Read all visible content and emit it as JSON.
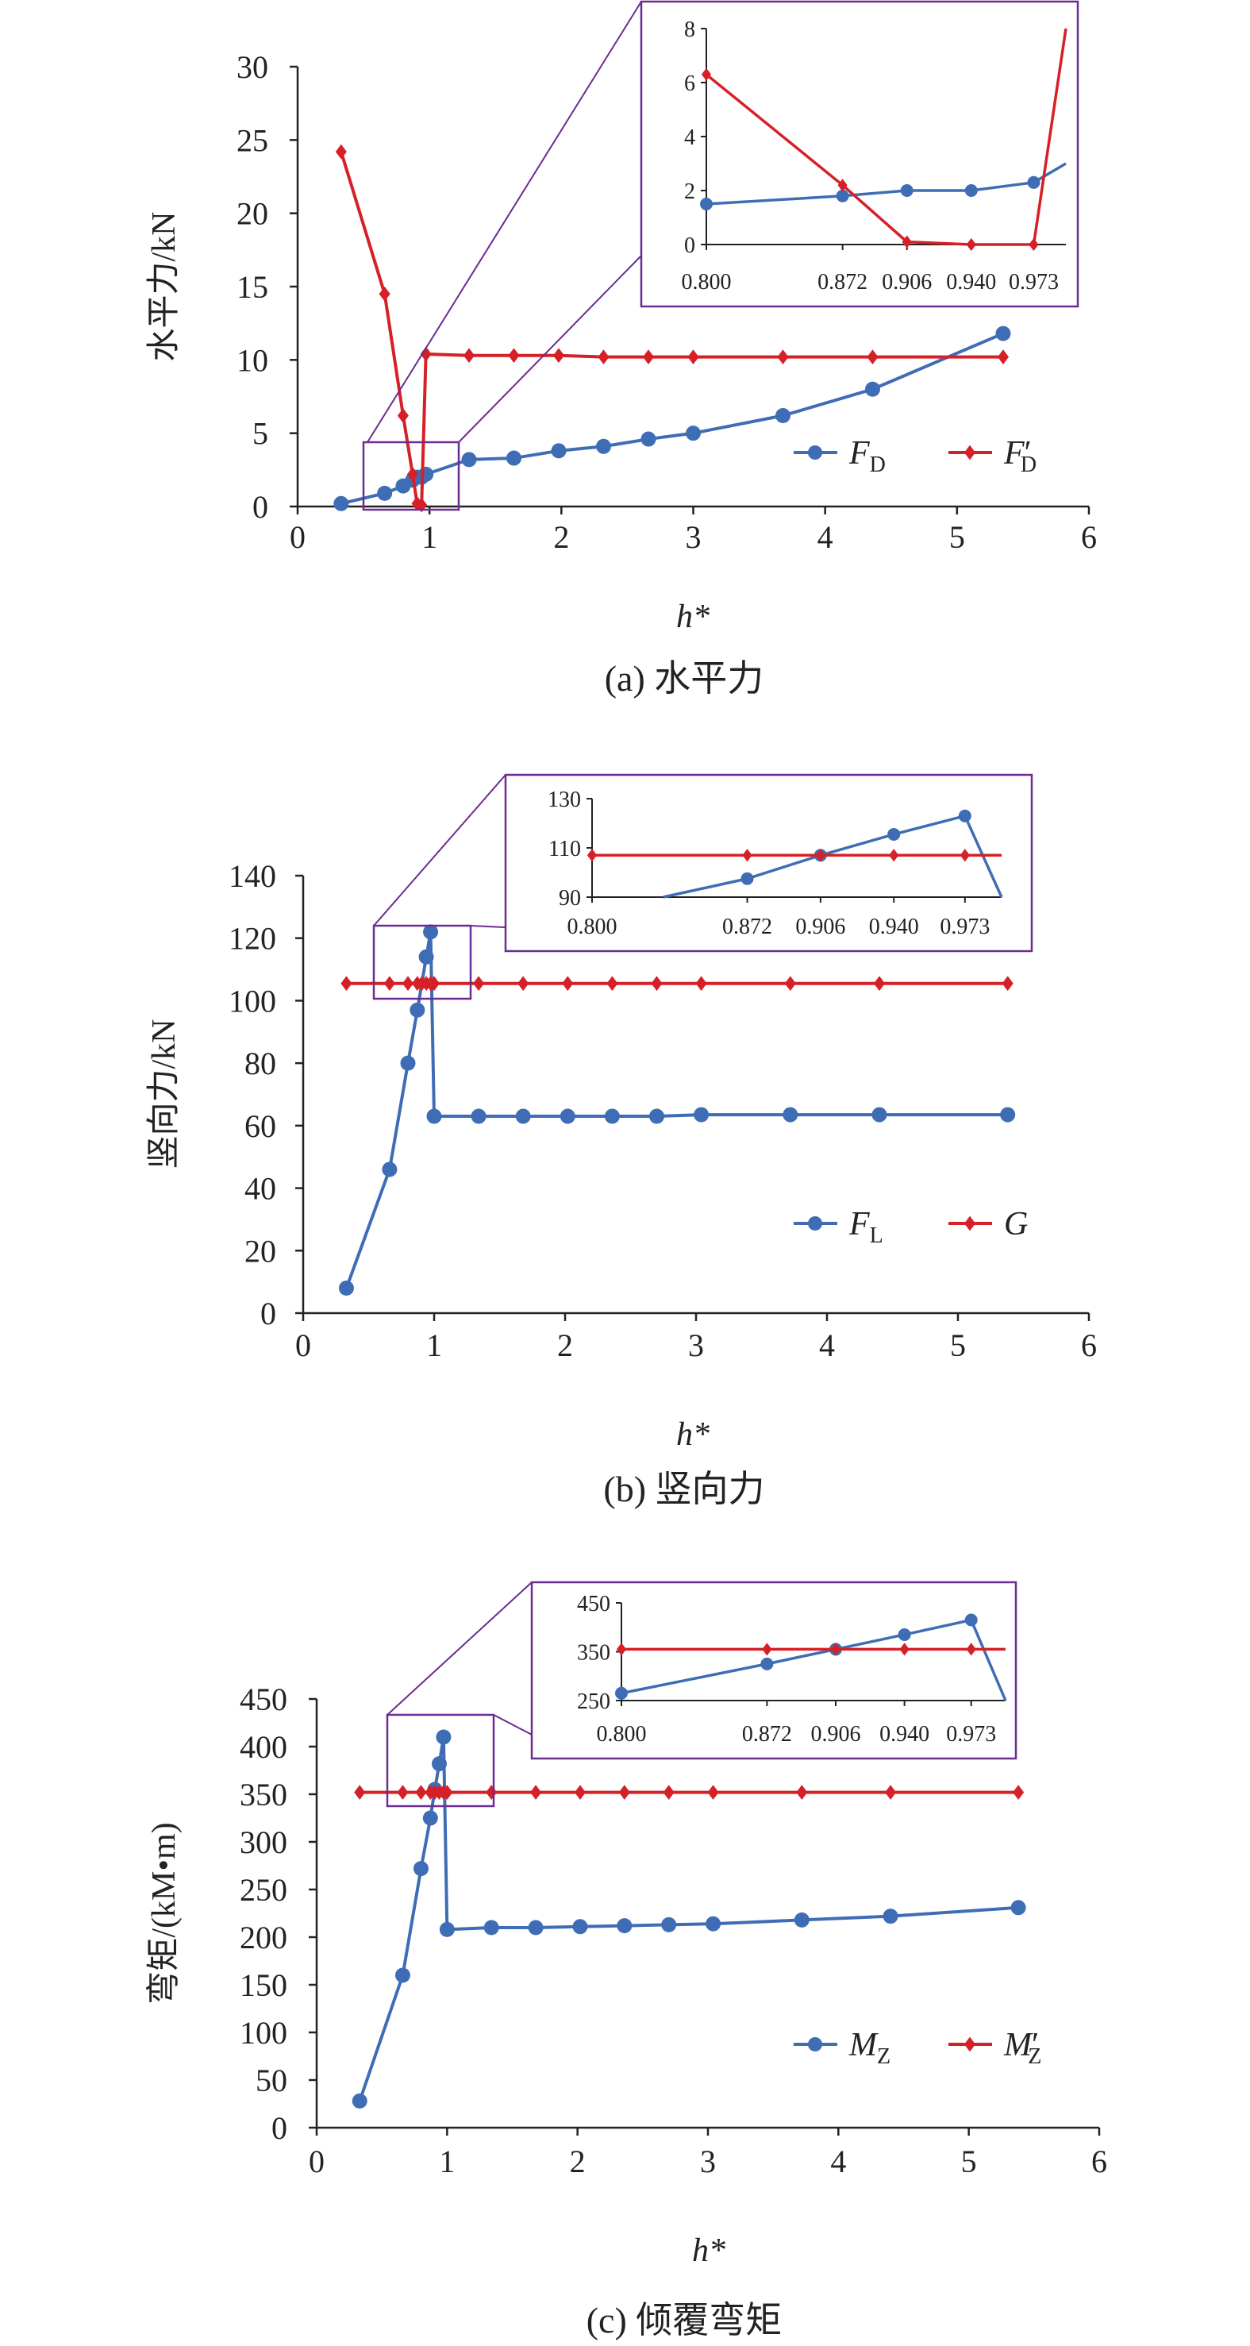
{
  "figure": {
    "panels": [
      {
        "caption": "(a) 水平力",
        "chart_data": {
          "type": "line",
          "xlabel": "h*",
          "ylabel": "水平力/kN",
          "xlim": [
            0,
            6
          ],
          "ylim": [
            0,
            30
          ],
          "xticks": [
            "0",
            "1",
            "2",
            "3",
            "4",
            "5",
            "6"
          ],
          "yticks": [
            "0",
            "5",
            "10",
            "15",
            "20",
            "25",
            "30"
          ],
          "grid": false,
          "legend_position": "bottom-right",
          "series": [
            {
              "name": "F_D",
              "legend_main": "F",
              "legend_sub": "D",
              "legend_prime": "",
              "color": "#3f6db5",
              "marker": "circle",
              "x": [
                0.33,
                0.66,
                0.8,
                0.872,
                0.906,
                0.94,
                0.973,
                1.3,
                1.64,
                1.98,
                2.32,
                2.66,
                3.0,
                3.68,
                4.36,
                5.35
              ],
              "y": [
                0.2,
                0.9,
                1.4,
                1.8,
                2.0,
                2.0,
                2.2,
                3.2,
                3.3,
                3.8,
                4.1,
                4.6,
                5.0,
                6.2,
                8.0,
                11.8
              ]
            },
            {
              "name": "F'_D",
              "legend_main": "F",
              "legend_sub": "D",
              "legend_prime": "′",
              "color": "#d62027",
              "marker": "diamond",
              "x": [
                0.33,
                0.66,
                0.8,
                0.872,
                0.906,
                0.94,
                0.973,
                1.3,
                1.64,
                1.98,
                2.32,
                2.66,
                3.0,
                3.68,
                4.36,
                5.35
              ],
              "y": [
                24.2,
                14.5,
                6.2,
                2.2,
                0.2,
                0.1,
                10.4,
                10.3,
                10.3,
                10.3,
                10.2,
                10.2,
                10.2,
                10.2,
                10.2,
                10.2
              ]
            }
          ],
          "inset": {
            "xlim": [
              0.8,
              0.99
            ],
            "ylim": [
              0,
              8
            ],
            "xticks": [
              "0.800",
              "0.872",
              "0.906",
              "0.940",
              "0.973"
            ],
            "yticks": [
              "0",
              "2",
              "4",
              "6",
              "8"
            ],
            "series": [
              {
                "x": [
                  0.8,
                  0.872,
                  0.906,
                  0.94,
                  0.973,
                  0.99
                ],
                "y": [
                  1.5,
                  1.8,
                  2.0,
                  2.0,
                  2.3,
                  3.0
                ]
              },
              {
                "x": [
                  0.8,
                  0.872,
                  0.906,
                  0.94,
                  0.973,
                  0.99
                ],
                "y": [
                  6.3,
                  2.2,
                  0.1,
                  0.0,
                  0.0,
                  8.0
                ]
              }
            ]
          }
        }
      },
      {
        "caption": "(b) 竖向力",
        "chart_data": {
          "type": "line",
          "xlabel": "h*",
          "ylabel": "竖向力/kN",
          "xlim": [
            0,
            6
          ],
          "ylim": [
            0,
            140
          ],
          "xticks": [
            "0",
            "1",
            "2",
            "3",
            "4",
            "5",
            "6"
          ],
          "yticks": [
            "0",
            "20",
            "40",
            "60",
            "80",
            "100",
            "120",
            "140"
          ],
          "grid": false,
          "legend_position": "bottom-right",
          "series": [
            {
              "name": "F_L",
              "legend_main": "F",
              "legend_sub": "L",
              "legend_prime": "",
              "color": "#3f6db5",
              "marker": "circle",
              "x": [
                0.33,
                0.66,
                0.8,
                0.872,
                0.94,
                0.973,
                1.0,
                1.34,
                1.68,
                2.02,
                2.36,
                2.7,
                3.04,
                3.72,
                4.4,
                5.38
              ],
              "y": [
                8,
                46,
                80,
                97,
                114,
                122,
                63,
                63,
                63,
                63,
                63,
                63,
                63.5,
                63.5,
                63.5,
                63.5
              ]
            },
            {
              "name": "G",
              "legend_main": "G",
              "legend_sub": "",
              "legend_prime": "",
              "color": "#d62027",
              "marker": "diamond",
              "x": [
                0.33,
                0.66,
                0.8,
                0.872,
                0.906,
                0.94,
                0.973,
                1.0,
                1.34,
                1.68,
                2.02,
                2.36,
                2.7,
                3.04,
                3.72,
                4.4,
                5.38
              ],
              "y": [
                105.5,
                105.5,
                105.5,
                105.5,
                105.5,
                105.5,
                105.5,
                105.5,
                105.5,
                105.5,
                105.5,
                105.5,
                105.5,
                105.5,
                105.5,
                105.5,
                105.5
              ]
            }
          ],
          "inset": {
            "xlim": [
              0.8,
              0.99
            ],
            "ylim": [
              90,
              130
            ],
            "xticks": [
              "0.800",
              "0.872",
              "0.906",
              "0.940",
              "0.973"
            ],
            "yticks": [
              "90",
              "110",
              "130"
            ],
            "series": [
              {
                "x": [
                  0.833,
                  0.872,
                  0.906,
                  0.94,
                  0.973,
                  0.99
                ],
                "y": [
                  90,
                  97.5,
                  107,
                  115.5,
                  123,
                  90
                ]
              },
              {
                "x": [
                  0.8,
                  0.872,
                  0.906,
                  0.94,
                  0.973,
                  0.99
                ],
                "y": [
                  107,
                  107,
                  107,
                  107,
                  107,
                  107
                ]
              }
            ]
          }
        }
      },
      {
        "caption": "(c) 倾覆弯矩",
        "chart_data": {
          "type": "line",
          "xlabel": "h*",
          "ylabel": "弯矩/(kM•m)",
          "xlim": [
            0,
            6
          ],
          "ylim": [
            0,
            450
          ],
          "xticks": [
            "0",
            "1",
            "2",
            "3",
            "4",
            "5",
            "6"
          ],
          "yticks": [
            "0",
            "50",
            "100",
            "150",
            "200",
            "250",
            "300",
            "350",
            "400",
            "450"
          ],
          "grid": false,
          "legend_position": "bottom-right",
          "series": [
            {
              "name": "M_Z",
              "legend_main": "M",
              "legend_sub": "Z",
              "legend_prime": "",
              "color": "#3f6db5",
              "marker": "circle",
              "x": [
                0.33,
                0.66,
                0.8,
                0.872,
                0.906,
                0.94,
                0.973,
                1.0,
                1.34,
                1.68,
                2.02,
                2.36,
                2.7,
                3.04,
                3.72,
                4.4,
                5.38
              ],
              "y": [
                28,
                160,
                272,
                325,
                355,
                382,
                410,
                208,
                210,
                210,
                211,
                212,
                213,
                214,
                218,
                222,
                231
              ]
            },
            {
              "name": "M'_Z",
              "legend_main": "M",
              "legend_sub": "Z",
              "legend_prime": "′",
              "color": "#d62027",
              "marker": "diamond",
              "x": [
                0.33,
                0.66,
                0.8,
                0.872,
                0.906,
                0.94,
                0.973,
                1.0,
                1.34,
                1.68,
                2.02,
                2.36,
                2.7,
                3.04,
                3.72,
                4.4,
                5.38
              ],
              "y": [
                352,
                352,
                352,
                352,
                352,
                352,
                352,
                352,
                352,
                352,
                352,
                352,
                352,
                352,
                352,
                352,
                352
              ]
            }
          ],
          "inset": {
            "xlim": [
              0.8,
              0.99
            ],
            "ylim": [
              250,
              450
            ],
            "xticks": [
              "0.800",
              "0.872",
              "0.906",
              "0.940",
              "0.973"
            ],
            "yticks": [
              "250",
              "350",
              "450"
            ],
            "series": [
              {
                "x": [
                  0.8,
                  0.872,
                  0.906,
                  0.94,
                  0.973,
                  0.99
                ],
                "y": [
                  265,
                  325,
                  355,
                  385,
                  415,
                  250
                ]
              },
              {
                "x": [
                  0.8,
                  0.872,
                  0.906,
                  0.94,
                  0.973,
                  0.99
                ],
                "y": [
                  355,
                  355,
                  355,
                  355,
                  355,
                  355
                ]
              }
            ]
          }
        }
      }
    ]
  }
}
